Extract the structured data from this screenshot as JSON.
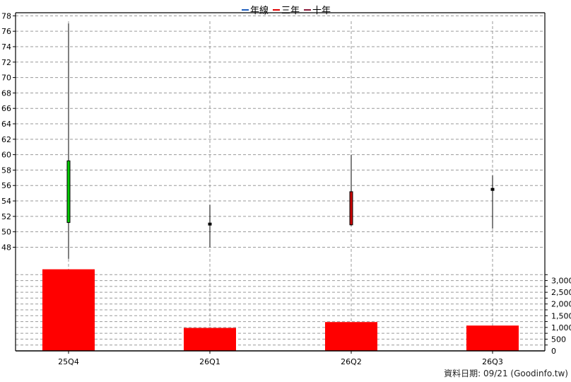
{
  "legend": [
    {
      "label": "年線",
      "color": "#1f5fbf"
    },
    {
      "label": "三年",
      "color": "#e00000"
    },
    {
      "label": "十年",
      "color": "#8b1a3a"
    }
  ],
  "footer": "資料日期: 09/21  (Goodinfo.tw)",
  "chart_data": [
    {
      "type": "candlestick",
      "categories": [
        "25Q4",
        "26Q1",
        "26Q2",
        "26Q3"
      ],
      "ohlc": [
        {
          "open": 51.2,
          "high": 77.0,
          "low": 46.5,
          "close": 59.2,
          "color": "#00cc00"
        },
        {
          "open": 51.0,
          "high": 53.5,
          "low": 48.0,
          "close": 51.0,
          "color": "#000000"
        },
        {
          "open": 55.2,
          "high": 60.0,
          "low": 50.8,
          "close": 50.9,
          "color": "#cc0000"
        },
        {
          "open": 55.5,
          "high": 57.3,
          "low": 50.4,
          "close": 55.5,
          "color": "#000000"
        }
      ],
      "yticks": [
        48,
        50,
        52,
        54,
        56,
        58,
        60,
        62,
        64,
        66,
        68,
        70,
        72,
        74,
        76,
        78
      ],
      "ylim": [
        45.2,
        78.4
      ],
      "grid": true,
      "legend_position": "top-center"
    },
    {
      "type": "bar",
      "categories": [
        "25Q4",
        "26Q1",
        "26Q2",
        "26Q3"
      ],
      "values": [
        3480,
        980,
        1230,
        1080
      ],
      "bar_color": "#ff0000",
      "yticks": [
        "0",
        "500",
        "1,000",
        "1,500",
        "2,000",
        "2,500",
        "3,000"
      ],
      "ytick_values": [
        0,
        500,
        1000,
        1500,
        2000,
        2500,
        3000
      ],
      "ylim": [
        0,
        3500
      ],
      "axis_side": "right",
      "grid": true
    }
  ]
}
